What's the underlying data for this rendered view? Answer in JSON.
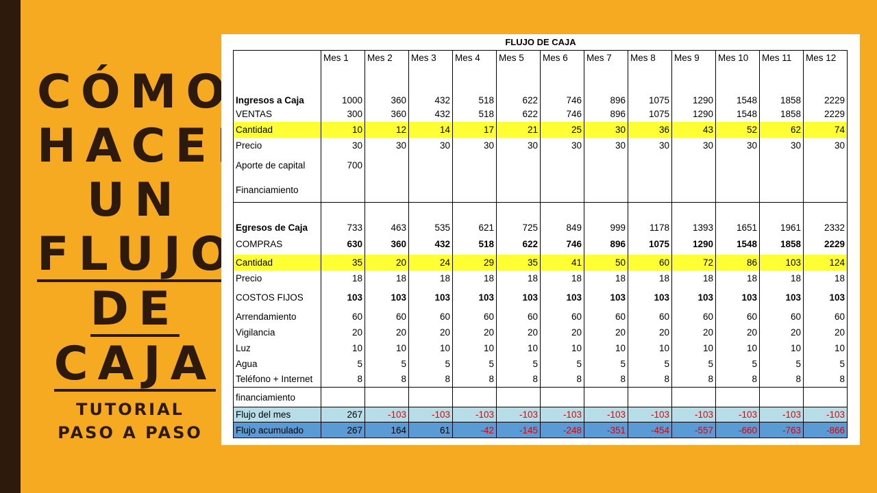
{
  "title": {
    "lines": [
      "CÓMO",
      "HACER",
      "UN",
      "FLUJO",
      "DE",
      "CAJA"
    ],
    "sub1": "TUTORIAL",
    "sub2": "PASO A PASO"
  },
  "sheet": {
    "title": "FLUJO DE CAJA",
    "months": [
      "Mes 1",
      "Mes 2",
      "Mes 3",
      "Mes 4",
      "Mes 5",
      "Mes 6",
      "Mes 7",
      "Mes 8",
      "Mes 9",
      "Mes 10",
      "Mes 11",
      "Mes 12"
    ],
    "rows": [
      {
        "label": "Ingresos a Caja",
        "style": "bl",
        "values": [
          "1000",
          "360",
          "432",
          "518",
          "622",
          "746",
          "896",
          "1075",
          "1290",
          "1548",
          "1858",
          "2229"
        ]
      },
      {
        "label": "VENTAS",
        "style": "",
        "values": [
          "300",
          "360",
          "432",
          "518",
          "622",
          "746",
          "896",
          "1075",
          "1290",
          "1548",
          "1858",
          "2229"
        ]
      },
      {
        "label": "Cantidad",
        "style": "hl",
        "values": [
          "10",
          "12",
          "14",
          "17",
          "21",
          "25",
          "30",
          "36",
          "43",
          "52",
          "62",
          "74"
        ]
      },
      {
        "label": "Precio",
        "style": "",
        "values": [
          "30",
          "30",
          "30",
          "30",
          "30",
          "30",
          "30",
          "30",
          "30",
          "30",
          "30",
          "30"
        ]
      },
      {
        "label": "Aporte de capital",
        "style": "",
        "values": [
          "700",
          "",
          "",
          "",
          "",
          "",
          "",
          "",
          "",
          "",
          "",
          ""
        ]
      },
      {
        "label": "Financiamiento",
        "style": "",
        "values": [
          "",
          "",
          "",
          "",
          "",
          "",
          "",
          "",
          "",
          "",
          "",
          ""
        ]
      },
      {
        "label": "Egresos de Caja",
        "style": "bl sep",
        "values": [
          "733",
          "463",
          "535",
          "621",
          "725",
          "849",
          "999",
          "1178",
          "1393",
          "1651",
          "1961",
          "2332"
        ]
      },
      {
        "label": "COMPRAS",
        "style": "bold",
        "values": [
          "630",
          "360",
          "432",
          "518",
          "622",
          "746",
          "896",
          "1075",
          "1290",
          "1548",
          "1858",
          "2229"
        ]
      },
      {
        "label": "Cantidad",
        "style": "hl",
        "values": [
          "35",
          "20",
          "24",
          "29",
          "35",
          "41",
          "50",
          "60",
          "72",
          "86",
          "103",
          "124"
        ]
      },
      {
        "label": "Precio",
        "style": "",
        "values": [
          "18",
          "18",
          "18",
          "18",
          "18",
          "18",
          "18",
          "18",
          "18",
          "18",
          "18",
          "18"
        ]
      },
      {
        "label": "COSTOS FIJOS",
        "style": "bold",
        "values": [
          "103",
          "103",
          "103",
          "103",
          "103",
          "103",
          "103",
          "103",
          "103",
          "103",
          "103",
          "103"
        ]
      },
      {
        "label": "Arrendamiento",
        "style": "",
        "values": [
          "60",
          "60",
          "60",
          "60",
          "60",
          "60",
          "60",
          "60",
          "60",
          "60",
          "60",
          "60"
        ]
      },
      {
        "label": "Vigilancia",
        "style": "",
        "values": [
          "20",
          "20",
          "20",
          "20",
          "20",
          "20",
          "20",
          "20",
          "20",
          "20",
          "20",
          "20"
        ]
      },
      {
        "label": "Luz",
        "style": "",
        "values": [
          "10",
          "10",
          "10",
          "10",
          "10",
          "10",
          "10",
          "10",
          "10",
          "10",
          "10",
          "10"
        ]
      },
      {
        "label": "Agua",
        "style": "",
        "values": [
          "5",
          "5",
          "5",
          "5",
          "5",
          "5",
          "5",
          "5",
          "5",
          "5",
          "5",
          "5"
        ]
      },
      {
        "label": "Teléfono + Internet",
        "style": "",
        "values": [
          "8",
          "8",
          "8",
          "8",
          "8",
          "8",
          "8",
          "8",
          "8",
          "8",
          "8",
          "8"
        ]
      },
      {
        "label": "financiamiento",
        "style": "sep",
        "values": [
          "",
          "",
          "",
          "",
          "",
          "",
          "",
          "",
          "",
          "",
          "",
          ""
        ]
      },
      {
        "label": "Flujo del mes",
        "style": "fm",
        "values": [
          "267",
          "-103",
          "-103",
          "-103",
          "-103",
          "-103",
          "-103",
          "-103",
          "-103",
          "-103",
          "-103",
          "-103"
        ]
      },
      {
        "label": "Flujo acumulado",
        "style": "fa",
        "values": [
          "267",
          "164",
          "61",
          "-42",
          "-145",
          "-248",
          "-351",
          "-454",
          "-557",
          "-660",
          "-763",
          "-866"
        ]
      }
    ]
  }
}
